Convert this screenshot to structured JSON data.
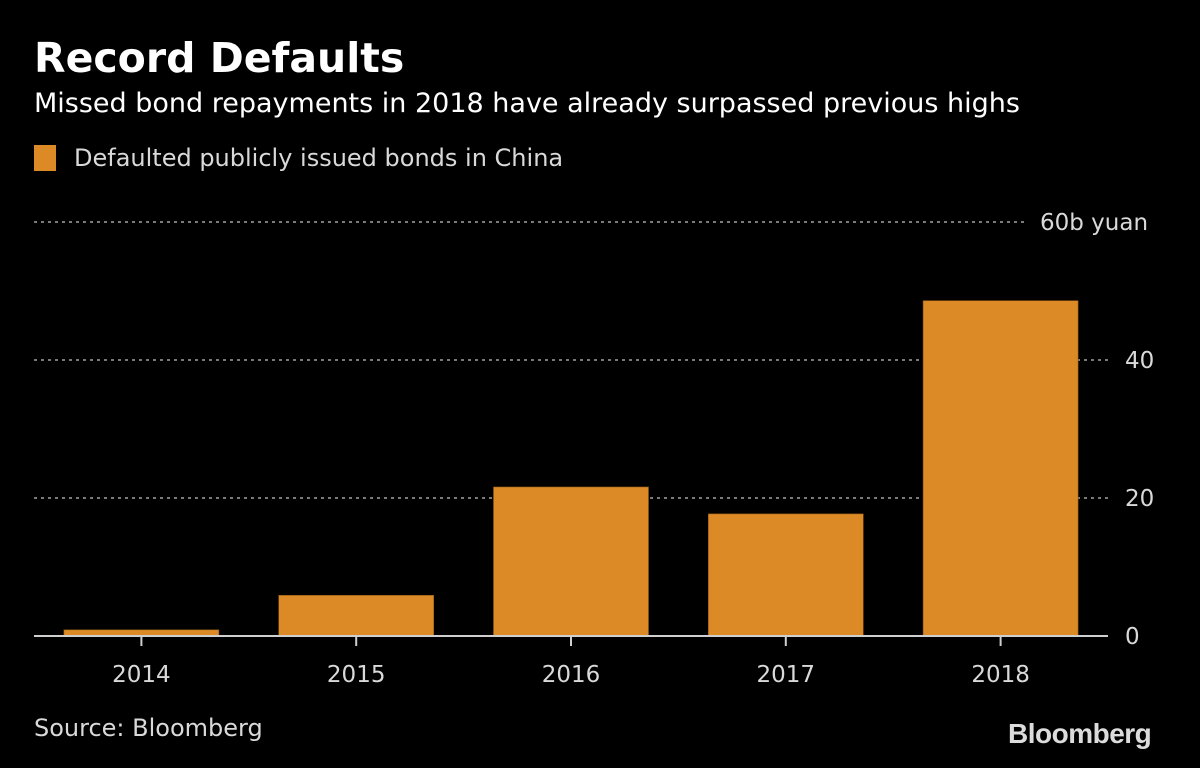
{
  "chart_data": {
    "type": "bar",
    "title": "Record Defaults",
    "subtitle": "Missed bond repayments in 2018 have already surpassed previous highs",
    "legend": [
      {
        "name": "Defaulted publicly issued bonds in China",
        "color": "#dc8a26"
      }
    ],
    "legend_placement": "top-left",
    "categories": [
      "2014",
      "2015",
      "2016",
      "2017",
      "2018"
    ],
    "series": [
      {
        "name": "Defaulted publicly issued bonds in China",
        "values": [
          0.9,
          5.9,
          21.6,
          17.7,
          48.6
        ]
      }
    ],
    "xlabel": "",
    "ylabel": "",
    "ylim": [
      0,
      60
    ],
    "yticks": [
      0,
      20,
      40,
      60
    ],
    "ytick_labels": [
      "0",
      "20",
      "40",
      "60b yuan"
    ],
    "y_axis_side": "right",
    "grid": "dotted horizontal",
    "source": "Source: Bloomberg",
    "brand": "Bloomberg",
    "colors": {
      "bar": "#dc8a26",
      "background": "#000000",
      "grid": "#7a7a7a",
      "axis": "#cfcfcf"
    }
  }
}
